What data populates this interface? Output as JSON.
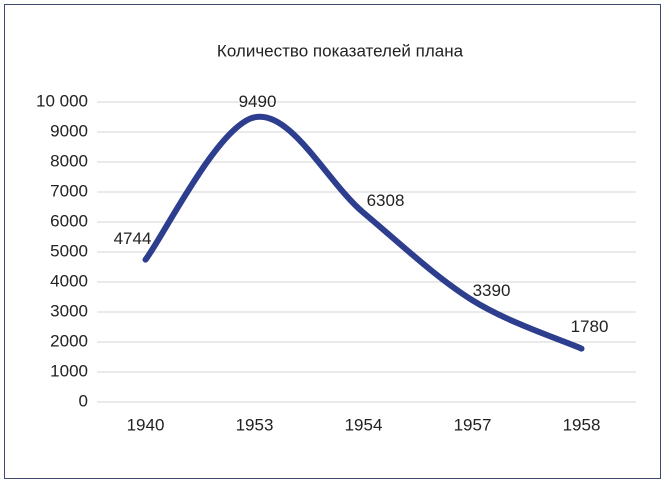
{
  "chart_data": {
    "type": "line",
    "title": "Количество показателей плана",
    "categories": [
      "1940",
      "1953",
      "1954",
      "1957",
      "1958"
    ],
    "values": [
      4744,
      9490,
      6308,
      3390,
      1780
    ],
    "color": "#2d3e8e",
    "ylim": [
      0,
      10000
    ],
    "yticks": [
      0,
      1000,
      2000,
      3000,
      4000,
      5000,
      6000,
      7000,
      8000,
      9000,
      {
        "value": 10000,
        "label": "10 000"
      }
    ],
    "grid": true,
    "smooth": true
  }
}
